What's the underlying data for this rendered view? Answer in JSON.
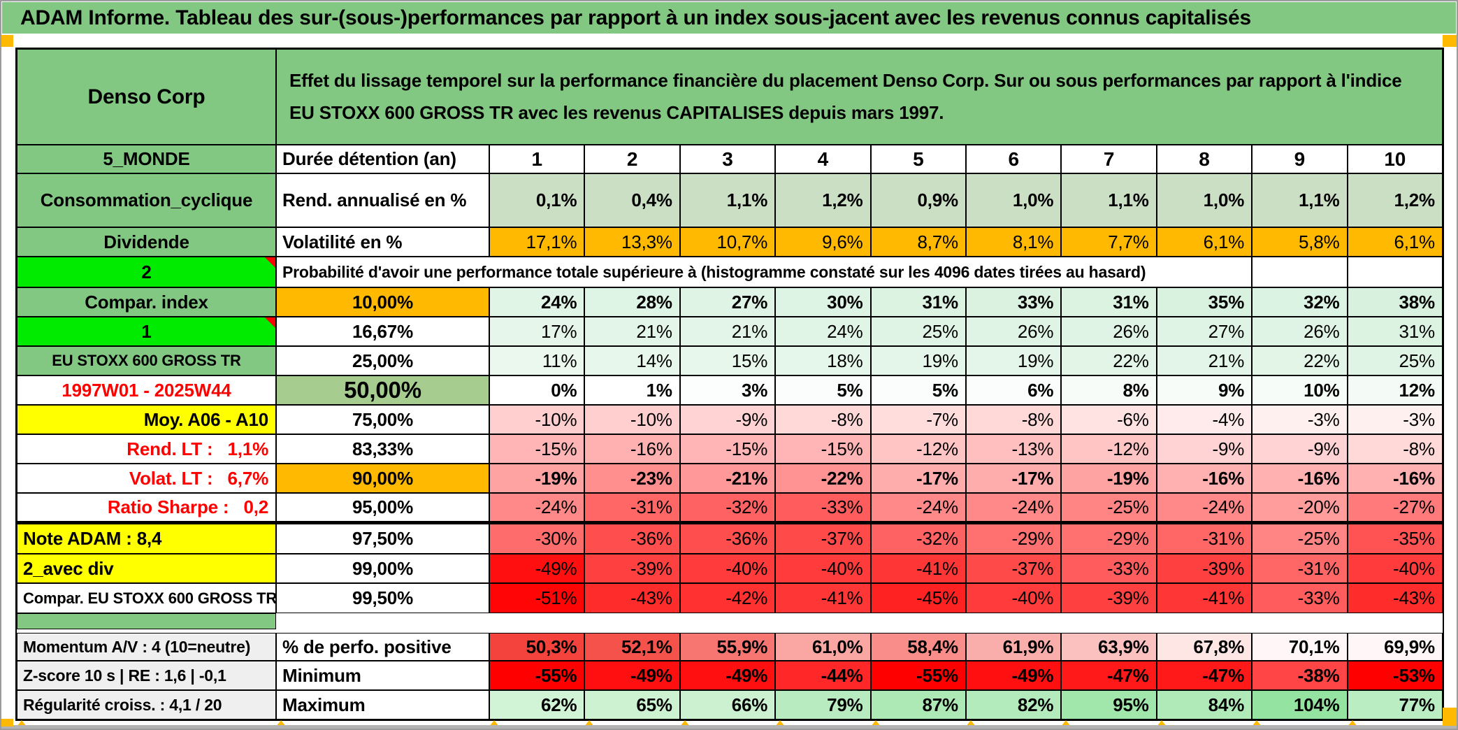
{
  "title": "ADAM Informe. Tableau des sur-(sous-)performances par rapport à un index sous-jacent avec les revenus connus capitalisés",
  "header": {
    "entity": "Denso Corp",
    "description": "Effet du lissage temporel sur la performance financière du placement Denso Corp. Sur ou sous performances par rapport à l'indice EU STOXX 600 GROSS TR avec les revenus CAPITALISES depuis mars 1997."
  },
  "colors": {
    "band": "#82c882",
    "bright": "#00eb00",
    "orange": "#ffb900",
    "sage": "#cbdfc5",
    "green50": "#a6cd8f",
    "yellow": "#ffff00",
    "gray": "#efefef",
    "redtext": "#ff0000",
    "mint": "#c8ecd2",
    "red": "#ff0000",
    "perfo": "#f4433c",
    "maxg": "#6fd97e"
  },
  "table": {
    "rows": [
      {
        "type": "cells",
        "label": "5_MONDE",
        "labelStyle": "green",
        "metric": "Durée détention (an)",
        "metricStyle": "left",
        "values": [
          "1",
          "2",
          "3",
          "4",
          "5",
          "6",
          "7",
          "8",
          "9",
          "10"
        ],
        "rule": "plain",
        "bold": true,
        "valueAlign": "center"
      },
      {
        "type": "cells",
        "label": "Consommation_cyclique",
        "labelStyle": "green",
        "metric": "Rend. annualisé en %",
        "metricStyle": "left",
        "values": [
          "0,1%",
          "0,4%",
          "1,1%",
          "1,2%",
          "0,9%",
          "1,0%",
          "1,1%",
          "1,0%",
          "1,1%",
          "1,2%"
        ],
        "rule": "sage",
        "bold": true
      },
      {
        "type": "cells",
        "label": "Dividende",
        "labelStyle": "green",
        "metric": "Volatilité en %",
        "metricStyle": "left",
        "values": [
          "17,1%",
          "13,3%",
          "10,7%",
          "9,6%",
          "8,7%",
          "8,1%",
          "7,7%",
          "6,1%",
          "5,8%",
          "6,1%"
        ],
        "rule": "orange",
        "bold": false
      },
      {
        "type": "span",
        "label": "2",
        "labelStyle": "bright",
        "text": "Probabilité d'avoir une performance totale supérieure à (histogramme constaté sur les 4096 dates tirées au hasard)",
        "empty": 2
      },
      {
        "type": "cells",
        "label": "Compar. index",
        "labelStyle": "green",
        "metric": "10,00%",
        "metricStyle": "pct-orange",
        "values": [
          "24%",
          "28%",
          "27%",
          "30%",
          "31%",
          "33%",
          "31%",
          "35%",
          "32%",
          "38%"
        ],
        "rule": "mint",
        "bold": true
      },
      {
        "type": "cells",
        "label": "1",
        "labelStyle": "bright",
        "metric": "16,67%",
        "metricStyle": "pct",
        "values": [
          "17%",
          "21%",
          "21%",
          "24%",
          "25%",
          "26%",
          "26%",
          "27%",
          "26%",
          "31%"
        ],
        "rule": "mint",
        "bold": false
      },
      {
        "type": "cells",
        "label": "EU STOXX 600 GROSS TR",
        "labelStyle": "green-sm",
        "metric": "25,00%",
        "metricStyle": "pct",
        "values": [
          "11%",
          "14%",
          "15%",
          "18%",
          "19%",
          "19%",
          "22%",
          "21%",
          "22%",
          "25%"
        ],
        "rule": "mint",
        "bold": false
      },
      {
        "type": "cells",
        "label": "1997W01 - 2025W44",
        "labelStyle": "redtext-center",
        "metric": "50,00%",
        "metricStyle": "pct-green",
        "values": [
          "0%",
          "1%",
          "3%",
          "5%",
          "5%",
          "6%",
          "8%",
          "9%",
          "10%",
          "12%"
        ],
        "rule": "mint0",
        "bold": true
      },
      {
        "type": "cells",
        "label": "Moy. A06 - A10",
        "labelStyle": "yellow-right",
        "metric": "75,00%",
        "metricStyle": "pct",
        "values": [
          "-10%",
          "-10%",
          "-9%",
          "-8%",
          "-7%",
          "-8%",
          "-6%",
          "-4%",
          "-3%",
          "-3%"
        ],
        "rule": "red",
        "bold": false
      },
      {
        "type": "cells",
        "label": "Rend. LT :   1,1%",
        "labelStyle": "redtext-right",
        "metric": "83,33%",
        "metricStyle": "pct",
        "values": [
          "-15%",
          "-16%",
          "-15%",
          "-15%",
          "-12%",
          "-13%",
          "-12%",
          "-9%",
          "-9%",
          "-8%"
        ],
        "rule": "red",
        "bold": false
      },
      {
        "type": "cells",
        "label": "Volat. LT :   6,7%",
        "labelStyle": "redtext-right",
        "metric": "90,00%",
        "metricStyle": "pct-orange",
        "values": [
          "-19%",
          "-23%",
          "-21%",
          "-22%",
          "-17%",
          "-17%",
          "-19%",
          "-16%",
          "-16%",
          "-16%"
        ],
        "rule": "red",
        "bold": true
      },
      {
        "type": "cells",
        "label": "Ratio Sharpe :   0,2",
        "labelStyle": "redtext-right",
        "metric": "95,00%",
        "metricStyle": "pct",
        "values": [
          "-24%",
          "-31%",
          "-32%",
          "-33%",
          "-24%",
          "-24%",
          "-25%",
          "-24%",
          "-20%",
          "-27%"
        ],
        "rule": "red",
        "bold": false,
        "thick": true
      },
      {
        "type": "cells",
        "label": "Note ADAM : 8,4",
        "labelStyle": "yellow-left",
        "metric": "97,50%",
        "metricStyle": "pct",
        "values": [
          "-30%",
          "-36%",
          "-36%",
          "-37%",
          "-32%",
          "-29%",
          "-29%",
          "-31%",
          "-25%",
          "-35%"
        ],
        "rule": "red",
        "bold": false
      },
      {
        "type": "cells",
        "label": "2_avec div",
        "labelStyle": "yellow-left",
        "metric": "99,00%",
        "metricStyle": "pct",
        "values": [
          "-49%",
          "-39%",
          "-40%",
          "-40%",
          "-41%",
          "-37%",
          "-33%",
          "-39%",
          "-31%",
          "-40%"
        ],
        "rule": "red",
        "bold": false
      },
      {
        "type": "cells",
        "label": "Compar. EU STOXX 600 GROSS TR",
        "labelStyle": "plain-left-sm",
        "metric": "99,50%",
        "metricStyle": "pct",
        "values": [
          "-51%",
          "-43%",
          "-42%",
          "-41%",
          "-45%",
          "-40%",
          "-39%",
          "-41%",
          "-33%",
          "-43%"
        ],
        "rule": "red",
        "bold": false
      },
      {
        "type": "spacer"
      },
      {
        "type": "gap"
      },
      {
        "type": "cells",
        "label": "Momentum A/V : 4 (10=neutre)",
        "labelStyle": "gray",
        "metric": "% de perfo. positive",
        "metricStyle": "left",
        "values": [
          "50,3%",
          "52,1%",
          "55,9%",
          "61,0%",
          "58,4%",
          "61,9%",
          "63,9%",
          "67,8%",
          "70,1%",
          "69,9%"
        ],
        "rule": "perfo",
        "bold": true
      },
      {
        "type": "cells",
        "label": "Z-score 10 s | RE : 1,6 | -0,1",
        "labelStyle": "gray",
        "metric": "Minimum",
        "metricStyle": "left",
        "values": [
          "-55%",
          "-49%",
          "-49%",
          "-44%",
          "-55%",
          "-49%",
          "-47%",
          "-47%",
          "-38%",
          "-53%"
        ],
        "rule": "red",
        "bold": true
      },
      {
        "type": "cells",
        "label": "Régularité croiss. : 4,1 / 20",
        "labelStyle": "gray",
        "metric": "Maximum",
        "metricStyle": "left",
        "values": [
          "62%",
          "65%",
          "66%",
          "79%",
          "87%",
          "82%",
          "95%",
          "84%",
          "104%",
          "77%"
        ],
        "rule": "max",
        "bold": true
      }
    ]
  }
}
